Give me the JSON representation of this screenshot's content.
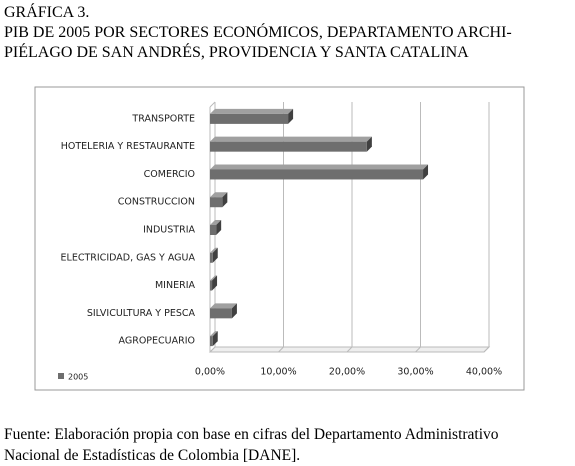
{
  "caption": {
    "label": "GRÁFICA 3.",
    "title_lines": [
      "PIB DE 2005 POR SECTORES ECONÓMICOS, DEPARTAMENTO ARCHI-",
      "PIÉLAGO DE SAN ANDRÉS, PROVIDENCIA Y SANTA CATALINA"
    ]
  },
  "chart_data": {
    "type": "bar",
    "orientation": "horizontal",
    "categories": [
      "TRANSPORTE",
      "HOTELERIA Y RESTAURANTE",
      "COMERCIO",
      "CONSTRUCCION",
      "INDUSTRIA",
      "ELECTRICIDAD, GAS Y AGUA",
      "MINERIA",
      "SILVICULTURA Y PESCA",
      "AGROPECUARIO"
    ],
    "series": [
      {
        "name": "2005",
        "color": "#6e6e6e",
        "values": [
          11.4,
          22.9,
          31.1,
          1.8,
          0.9,
          0.4,
          0.3,
          3.2,
          0.4
        ]
      }
    ],
    "xlim": [
      0,
      40
    ],
    "xticks": [
      {
        "value": 0,
        "label": "0,00%"
      },
      {
        "value": 10,
        "label": "10,00%"
      },
      {
        "value": 20,
        "label": "20,00%"
      },
      {
        "value": 30,
        "label": "30,00%"
      },
      {
        "value": 40,
        "label": "40,00%"
      }
    ],
    "grid": true,
    "legend": "bottom-left"
  },
  "source_lines": [
    "Fuente:  Elaboración propia con base en cifras del Departamento Administrativo",
    "Nacional de Estadísticas de Colombia [DANE]."
  ]
}
